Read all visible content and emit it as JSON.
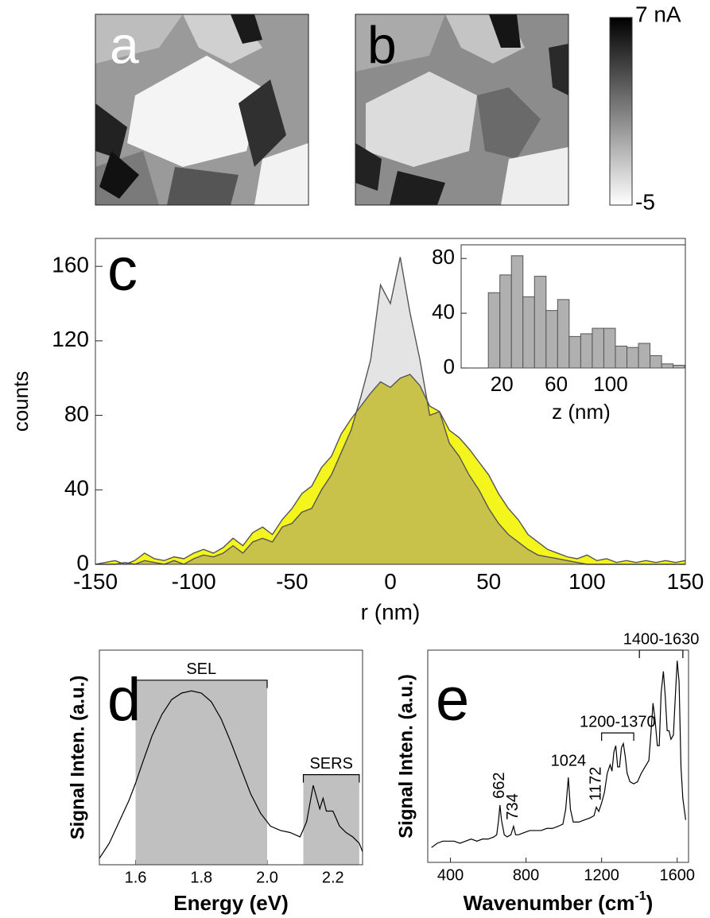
{
  "images": [
    {
      "label": "a"
    },
    {
      "label": "b"
    }
  ],
  "chart_data": [
    {
      "type": "colorbar",
      "ylim": [
        -5,
        7
      ],
      "yticks": [
        {
          "value": 7,
          "label": "7 nA"
        },
        -5
      ],
      "cmap": [
        "#ffffff",
        "#000000"
      ]
    },
    {
      "type": "area",
      "panel_label": "c",
      "xlabel": "r (nm)",
      "ylabel": "counts",
      "xlim": [
        -150,
        150
      ],
      "ylim": [
        0,
        175
      ],
      "xticks": [
        -150,
        -100,
        -50,
        0,
        50,
        100,
        150
      ],
      "yticks": [
        0,
        40,
        80,
        120,
        160
      ],
      "x": [
        -150,
        -145,
        -140,
        -135,
        -130,
        -125,
        -120,
        -115,
        -110,
        -105,
        -100,
        -95,
        -90,
        -85,
        -80,
        -75,
        -70,
        -65,
        -60,
        -55,
        -50,
        -45,
        -40,
        -35,
        -30,
        -25,
        -20,
        -15,
        -10,
        -5,
        0,
        5,
        10,
        15,
        20,
        25,
        30,
        35,
        40,
        45,
        50,
        55,
        60,
        65,
        70,
        75,
        80,
        85,
        90,
        95,
        100,
        105,
        110,
        115,
        120,
        125,
        130,
        135,
        140,
        145,
        150
      ],
      "series": [
        {
          "color": "#e4e4e4",
          "values": [
            0,
            0,
            0,
            1,
            0,
            2,
            1,
            0,
            2,
            0,
            3,
            5,
            4,
            6,
            10,
            6,
            12,
            14,
            12,
            20,
            22,
            28,
            30,
            40,
            48,
            60,
            72,
            90,
            110,
            150,
            140,
            165,
            135,
            110,
            80,
            82,
            65,
            58,
            48,
            40,
            30,
            22,
            16,
            12,
            8,
            5,
            4,
            3,
            2,
            1,
            0,
            0,
            0,
            0,
            0,
            0,
            0,
            0,
            0,
            0,
            0
          ]
        },
        {
          "color": "#f5f51e",
          "values": [
            0,
            1,
            2,
            0,
            2,
            6,
            3,
            2,
            4,
            3,
            6,
            8,
            6,
            9,
            14,
            10,
            17,
            20,
            16,
            24,
            30,
            38,
            42,
            52,
            58,
            70,
            78,
            85,
            92,
            98,
            95,
            100,
            102,
            96,
            85,
            82,
            72,
            68,
            62,
            55,
            48,
            38,
            30,
            24,
            16,
            12,
            8,
            6,
            4,
            3,
            5,
            2,
            3,
            1,
            2,
            1,
            2,
            1,
            2,
            1,
            2
          ]
        }
      ],
      "overlap_color": "#c9c24a"
    },
    {
      "type": "histogram",
      "xlabel": "z (nm)",
      "xlim": [
        -10,
        155
      ],
      "ylim": [
        0,
        90
      ],
      "xticks": [
        20,
        60,
        100
      ],
      "yticks": [
        0,
        40,
        80
      ],
      "color": "#b0b0b0",
      "bins": [
        10,
        18.5,
        27,
        35.5,
        44,
        52.5,
        61,
        69.5,
        78,
        86.5,
        95,
        103.5,
        112,
        120.5,
        129,
        137.5,
        146,
        154.5
      ],
      "values": [
        55,
        68,
        82,
        52,
        67,
        42,
        50,
        23,
        25,
        29,
        29,
        16,
        15,
        18,
        9,
        3,
        2
      ]
    },
    {
      "type": "line",
      "panel_label": "d",
      "xlabel": "Energy (eV)",
      "ylabel": "Signal Inten. (a.u.)",
      "xlim": [
        1.49,
        2.29
      ],
      "ylim": [
        0,
        1
      ],
      "xticks": [
        1.6,
        1.8,
        {
          "value": 2,
          "label": "2.0"
        },
        2.2
      ],
      "x": [
        1.49,
        1.52,
        1.55,
        1.58,
        1.6,
        1.62,
        1.65,
        1.68,
        1.71,
        1.74,
        1.77,
        1.8,
        1.83,
        1.86,
        1.89,
        1.92,
        1.95,
        1.98,
        2.01,
        2.04,
        2.07,
        2.1,
        2.12,
        2.14,
        2.16,
        2.17,
        2.18,
        2.2,
        2.22,
        2.24,
        2.26,
        2.28,
        2.29
      ],
      "values": [
        0.03,
        0.1,
        0.2,
        0.3,
        0.38,
        0.47,
        0.6,
        0.7,
        0.77,
        0.8,
        0.81,
        0.8,
        0.76,
        0.68,
        0.57,
        0.45,
        0.33,
        0.24,
        0.18,
        0.16,
        0.15,
        0.13,
        0.2,
        0.37,
        0.26,
        0.31,
        0.25,
        0.25,
        0.18,
        0.15,
        0.13,
        0.1,
        0.06
      ],
      "color": "#000000",
      "span_color": "#c0c0c0",
      "spans": [
        {
          "label": "SEL",
          "x0": 1.6,
          "x1": 2.0
        },
        {
          "label": "SERS",
          "x0": 2.11,
          "x1": 2.28
        }
      ]
    },
    {
      "type": "line",
      "panel_label": "e",
      "xlabel": "Wavenumber (cm",
      "xlabel_sup": "-1",
      "xlabel_end": ")",
      "ylabel": "Signal Inten. (a.u.)",
      "xlim": [
        280,
        1660
      ],
      "ylim": [
        0,
        1
      ],
      "xticks": [
        400,
        800,
        1200,
        1600
      ],
      "x": [
        300,
        330,
        360,
        390,
        420,
        450,
        480,
        510,
        540,
        570,
        600,
        630,
        645,
        655,
        662,
        670,
        685,
        700,
        720,
        734,
        745,
        760,
        790,
        820,
        850,
        880,
        910,
        940,
        970,
        995,
        1010,
        1024,
        1035,
        1050,
        1080,
        1110,
        1140,
        1160,
        1172,
        1185,
        1200,
        1215,
        1230,
        1245,
        1255,
        1265,
        1275,
        1285,
        1295,
        1305,
        1315,
        1325,
        1335,
        1350,
        1370,
        1390,
        1410,
        1430,
        1450,
        1462,
        1472,
        1482,
        1495,
        1505,
        1515,
        1527,
        1537,
        1547,
        1557,
        1567,
        1580,
        1590,
        1600,
        1610,
        1620,
        1630,
        1645
      ],
      "values": [
        0.07,
        0.09,
        0.1,
        0.1,
        0.1,
        0.09,
        0.1,
        0.11,
        0.1,
        0.11,
        0.11,
        0.12,
        0.13,
        0.2,
        0.27,
        0.2,
        0.13,
        0.12,
        0.13,
        0.17,
        0.13,
        0.13,
        0.14,
        0.15,
        0.15,
        0.15,
        0.16,
        0.16,
        0.17,
        0.18,
        0.25,
        0.4,
        0.25,
        0.19,
        0.19,
        0.2,
        0.21,
        0.22,
        0.26,
        0.24,
        0.28,
        0.33,
        0.42,
        0.46,
        0.43,
        0.52,
        0.55,
        0.45,
        0.45,
        0.54,
        0.56,
        0.5,
        0.42,
        0.38,
        0.37,
        0.38,
        0.42,
        0.45,
        0.48,
        0.62,
        0.75,
        0.68,
        0.55,
        0.55,
        0.8,
        0.9,
        0.78,
        0.62,
        0.62,
        0.58,
        0.6,
        0.78,
        0.95,
        0.85,
        0.45,
        0.3,
        0.2
      ],
      "color": "#000000",
      "peaks": [
        662,
        734,
        1024,
        1172
      ],
      "ranges": [
        {
          "label": "1200-1370",
          "x0": 1200,
          "x1": 1370
        },
        {
          "label": "1400-1630",
          "x0": 1400,
          "x1": 1630
        }
      ]
    }
  ]
}
